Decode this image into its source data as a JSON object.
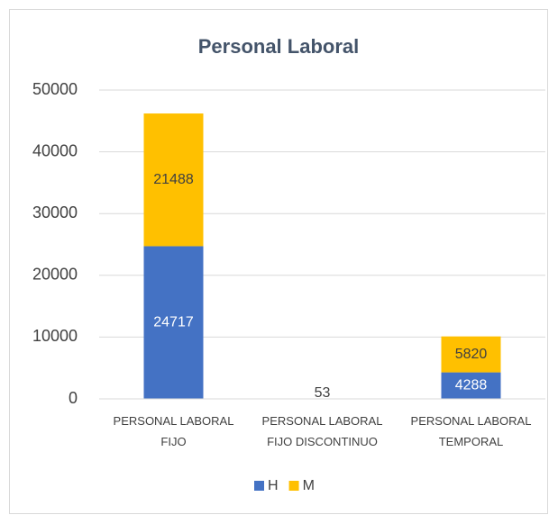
{
  "chart_data": {
    "type": "stacked_bar",
    "title": "Personal Laboral",
    "categories": [
      "PERSONAL LABORAL FIJO",
      "PERSONAL LABORAL FIJO DISCONTINUO",
      "PERSONAL LABORAL TEMPORAL"
    ],
    "series": [
      {
        "name": "H",
        "color": "#4472c4",
        "values": [
          24717,
          null,
          4288
        ]
      },
      {
        "name": "M",
        "color": "#ffc000",
        "values": [
          21488,
          53,
          5820
        ]
      }
    ],
    "ylim": [
      0,
      50000
    ],
    "yticks": [
      0,
      10000,
      20000,
      30000,
      40000,
      50000
    ],
    "grid": true,
    "legend": "bottom"
  }
}
